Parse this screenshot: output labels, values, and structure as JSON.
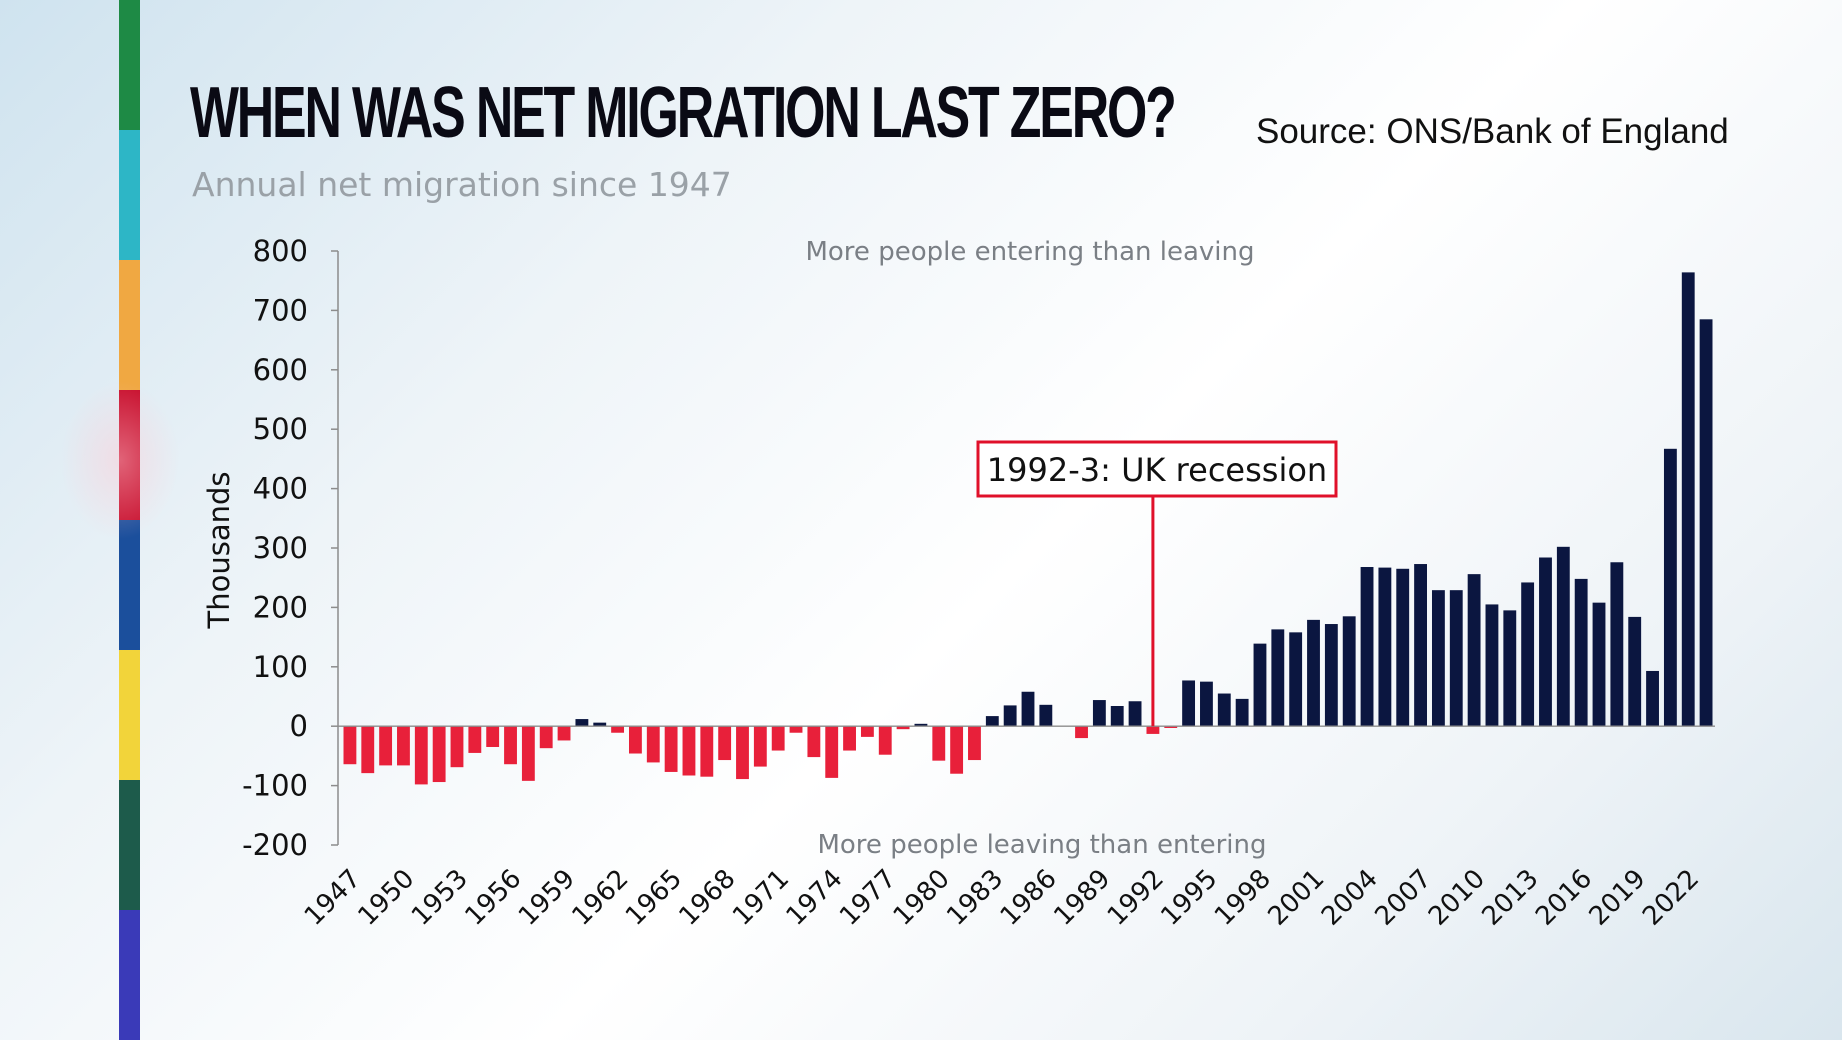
{
  "title": "WHEN WAS NET MIGRATION LAST ZERO?",
  "subtitle": "Annual net migration since 1947",
  "source": "Source: ONS/Bank of England",
  "stripe_colors": [
    "#1e8a45",
    "#2db6c6",
    "#f0a842",
    "#c8102e",
    "#1b4f9c",
    "#f2d43a",
    "#1d5b4b",
    "#3a3ab8"
  ],
  "colors": {
    "positive": "#0b1640",
    "negative": "#e8203a",
    "annotation": "#e0102a",
    "axis": "#8c8c8c",
    "note": "#7a7f85"
  },
  "chart_data": {
    "type": "bar",
    "title": "Annual net migration since 1947",
    "xlabel": "",
    "ylabel": "Thousands",
    "ylim": [
      -200,
      800
    ],
    "yticks": [
      800,
      700,
      600,
      500,
      400,
      300,
      200,
      100,
      0,
      -100,
      -200
    ],
    "ytick_labels": [
      "800",
      "700",
      "600",
      "500",
      "400",
      "300",
      "200",
      "100",
      "0",
      "-100",
      "-200"
    ],
    "categories": [
      1947,
      1948,
      1949,
      1950,
      1951,
      1952,
      1953,
      1954,
      1955,
      1956,
      1957,
      1958,
      1959,
      1960,
      1961,
      1962,
      1963,
      1964,
      1965,
      1966,
      1967,
      1968,
      1969,
      1970,
      1971,
      1972,
      1973,
      1974,
      1975,
      1976,
      1977,
      1978,
      1979,
      1980,
      1981,
      1982,
      1983,
      1984,
      1985,
      1986,
      1987,
      1988,
      1989,
      1990,
      1991,
      1992,
      1993,
      1994,
      1995,
      1996,
      1997,
      1998,
      1999,
      2000,
      2001,
      2002,
      2003,
      2004,
      2005,
      2006,
      2007,
      2008,
      2009,
      2010,
      2011,
      2012,
      2013,
      2014,
      2015,
      2016,
      2017,
      2018,
      2019,
      2020,
      2021,
      2022,
      2023
    ],
    "values": [
      -64,
      -79,
      -66,
      -66,
      -98,
      -94,
      -69,
      -45,
      -35,
      -64,
      -92,
      -37,
      -24,
      12,
      6,
      -11,
      -46,
      -61,
      -77,
      -83,
      -85,
      -57,
      -89,
      -68,
      -41,
      -11,
      -52,
      -87,
      -41,
      -18,
      -48,
      -5,
      4,
      -58,
      -80,
      -57,
      17,
      35,
      58,
      36,
      0,
      -20,
      44,
      34,
      42,
      -13,
      -3,
      77,
      75,
      55,
      46,
      139,
      163,
      158,
      179,
      172,
      185,
      268,
      267,
      265,
      273,
      229,
      229,
      256,
      205,
      195,
      242,
      284,
      302,
      248,
      208,
      276,
      184,
      93,
      467,
      764,
      685
    ],
    "x_tick_labels": [
      "1947",
      "1950",
      "1953",
      "1956",
      "1959",
      "1962",
      "1965",
      "1968",
      "1971",
      "1974",
      "1977",
      "1980",
      "1983",
      "1986",
      "1989",
      "1992",
      "1995",
      "1998",
      "2001",
      "2004",
      "2007",
      "2010",
      "2013",
      "2016",
      "2019",
      "2022"
    ],
    "annotations": [
      {
        "text": "1992-3: UK recession",
        "year": 1992
      },
      {
        "text": "More people entering than leaving",
        "position": "top"
      },
      {
        "text": "More people leaving than entering",
        "position": "bottom"
      }
    ]
  }
}
